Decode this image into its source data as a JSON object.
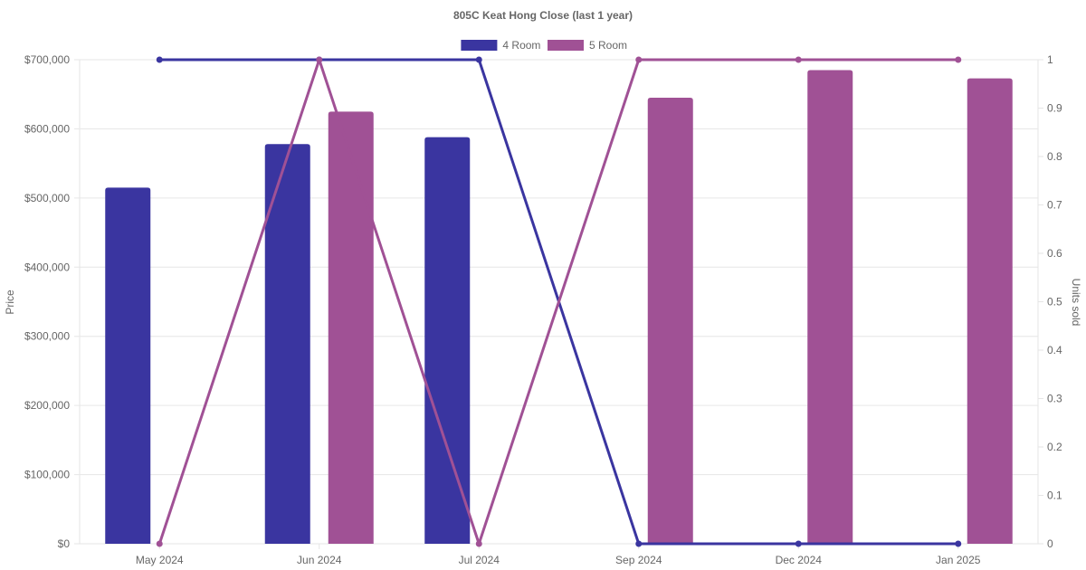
{
  "chart_data": {
    "type": "bar",
    "title": "805C Keat Hong Close (last 1 year)",
    "categories": [
      "May 2024",
      "Jun 2024",
      "Jul 2024",
      "Sep 2024",
      "Dec 2024",
      "Jan 2025"
    ],
    "y_left": {
      "label": "Price",
      "min": 0,
      "max": 700000,
      "step": 100000
    },
    "y_right": {
      "label": "Units sold",
      "min": 0,
      "max": 1,
      "step": 0.1
    },
    "legend_position": "top",
    "grid": true,
    "series": [
      {
        "name": "4 Room",
        "type": "bar",
        "axis": "left",
        "color": "#3a35a0",
        "values": [
          515000,
          578000,
          588000,
          null,
          null,
          null
        ]
      },
      {
        "name": "5 Room",
        "type": "bar",
        "axis": "left",
        "color": "#a05195",
        "values": [
          null,
          625000,
          null,
          645000,
          685000,
          673000
        ]
      },
      {
        "name": "4 Room",
        "type": "line",
        "axis": "right",
        "color": "#3a35a0",
        "values": [
          1,
          1,
          1,
          0,
          0,
          0
        ]
      },
      {
        "name": "5 Room",
        "type": "line",
        "axis": "right",
        "color": "#a05195",
        "values": [
          0,
          1,
          0,
          1,
          1,
          1
        ]
      }
    ],
    "legend": [
      {
        "name": "4 Room",
        "color": "#3a35a0"
      },
      {
        "name": "5 Room",
        "color": "#a05195"
      }
    ]
  }
}
